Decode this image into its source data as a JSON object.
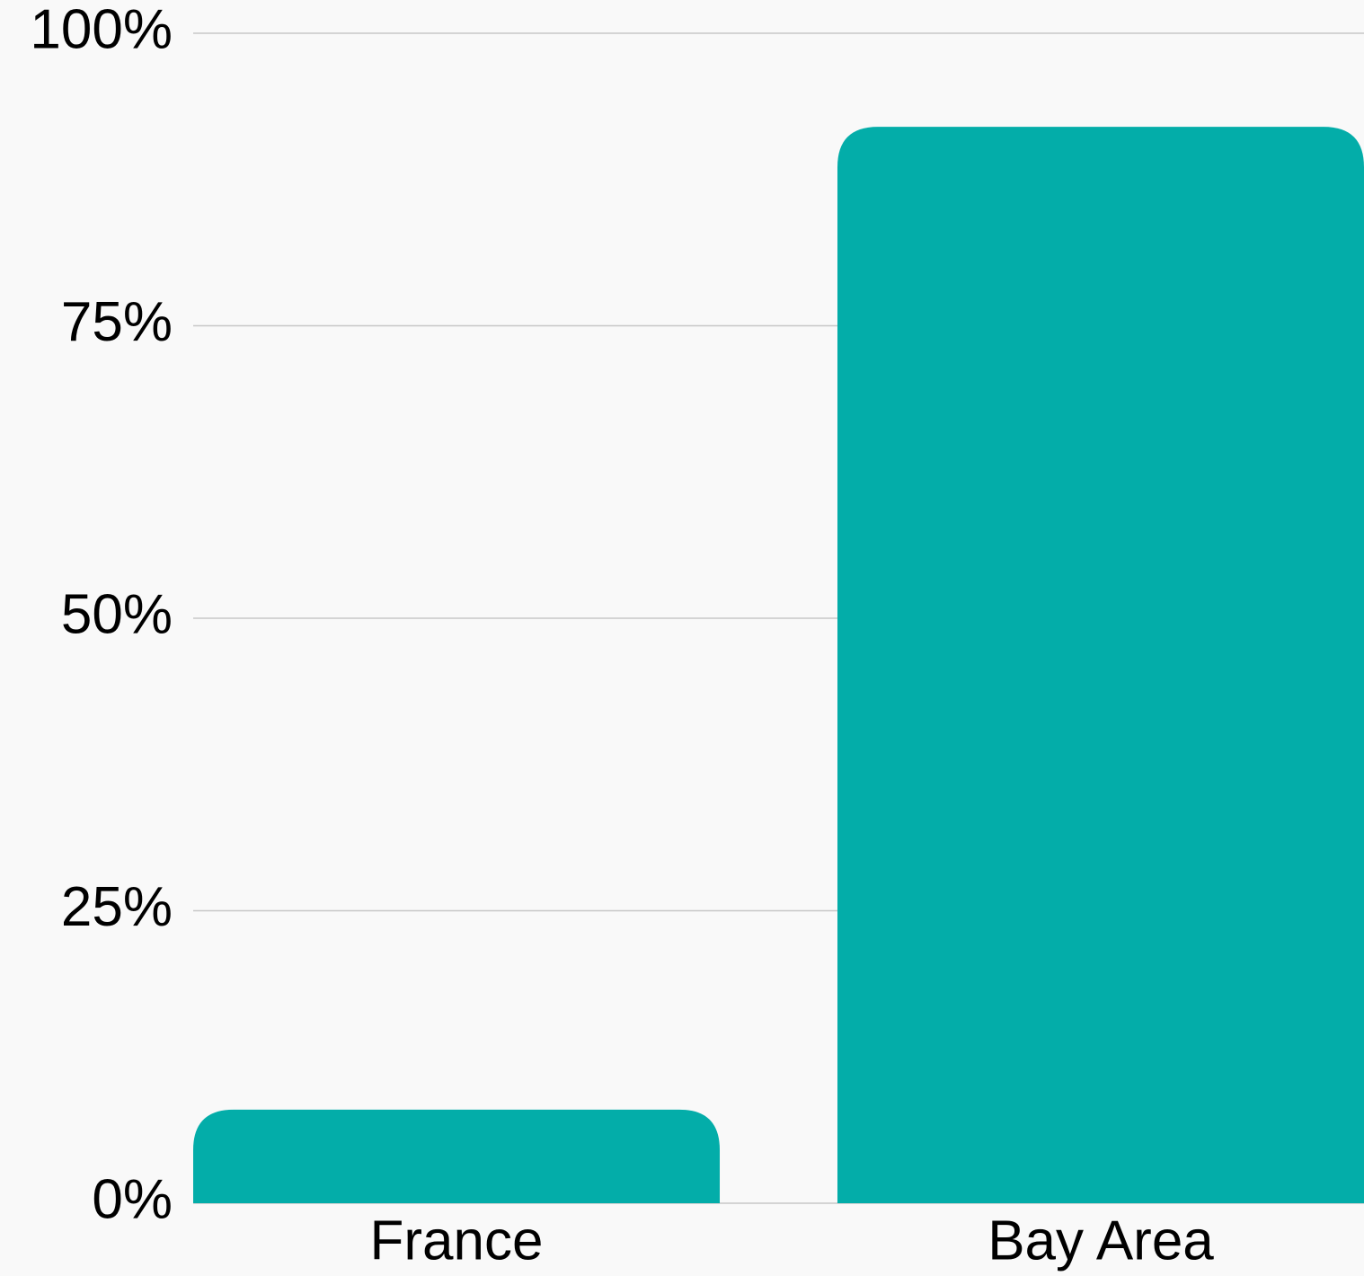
{
  "chart_data": {
    "type": "bar",
    "categories": [
      "France",
      "Bay Area"
    ],
    "values": [
      8,
      92
    ],
    "color": "#03ada9",
    "ylim": [
      0,
      100
    ],
    "yticks": [
      {
        "value": 0,
        "label": "0%"
      },
      {
        "value": 25,
        "label": "25%"
      },
      {
        "value": 50,
        "label": "50%"
      },
      {
        "value": 75,
        "label": "75%"
      },
      {
        "value": 100,
        "label": "100%"
      }
    ],
    "grid": true
  }
}
